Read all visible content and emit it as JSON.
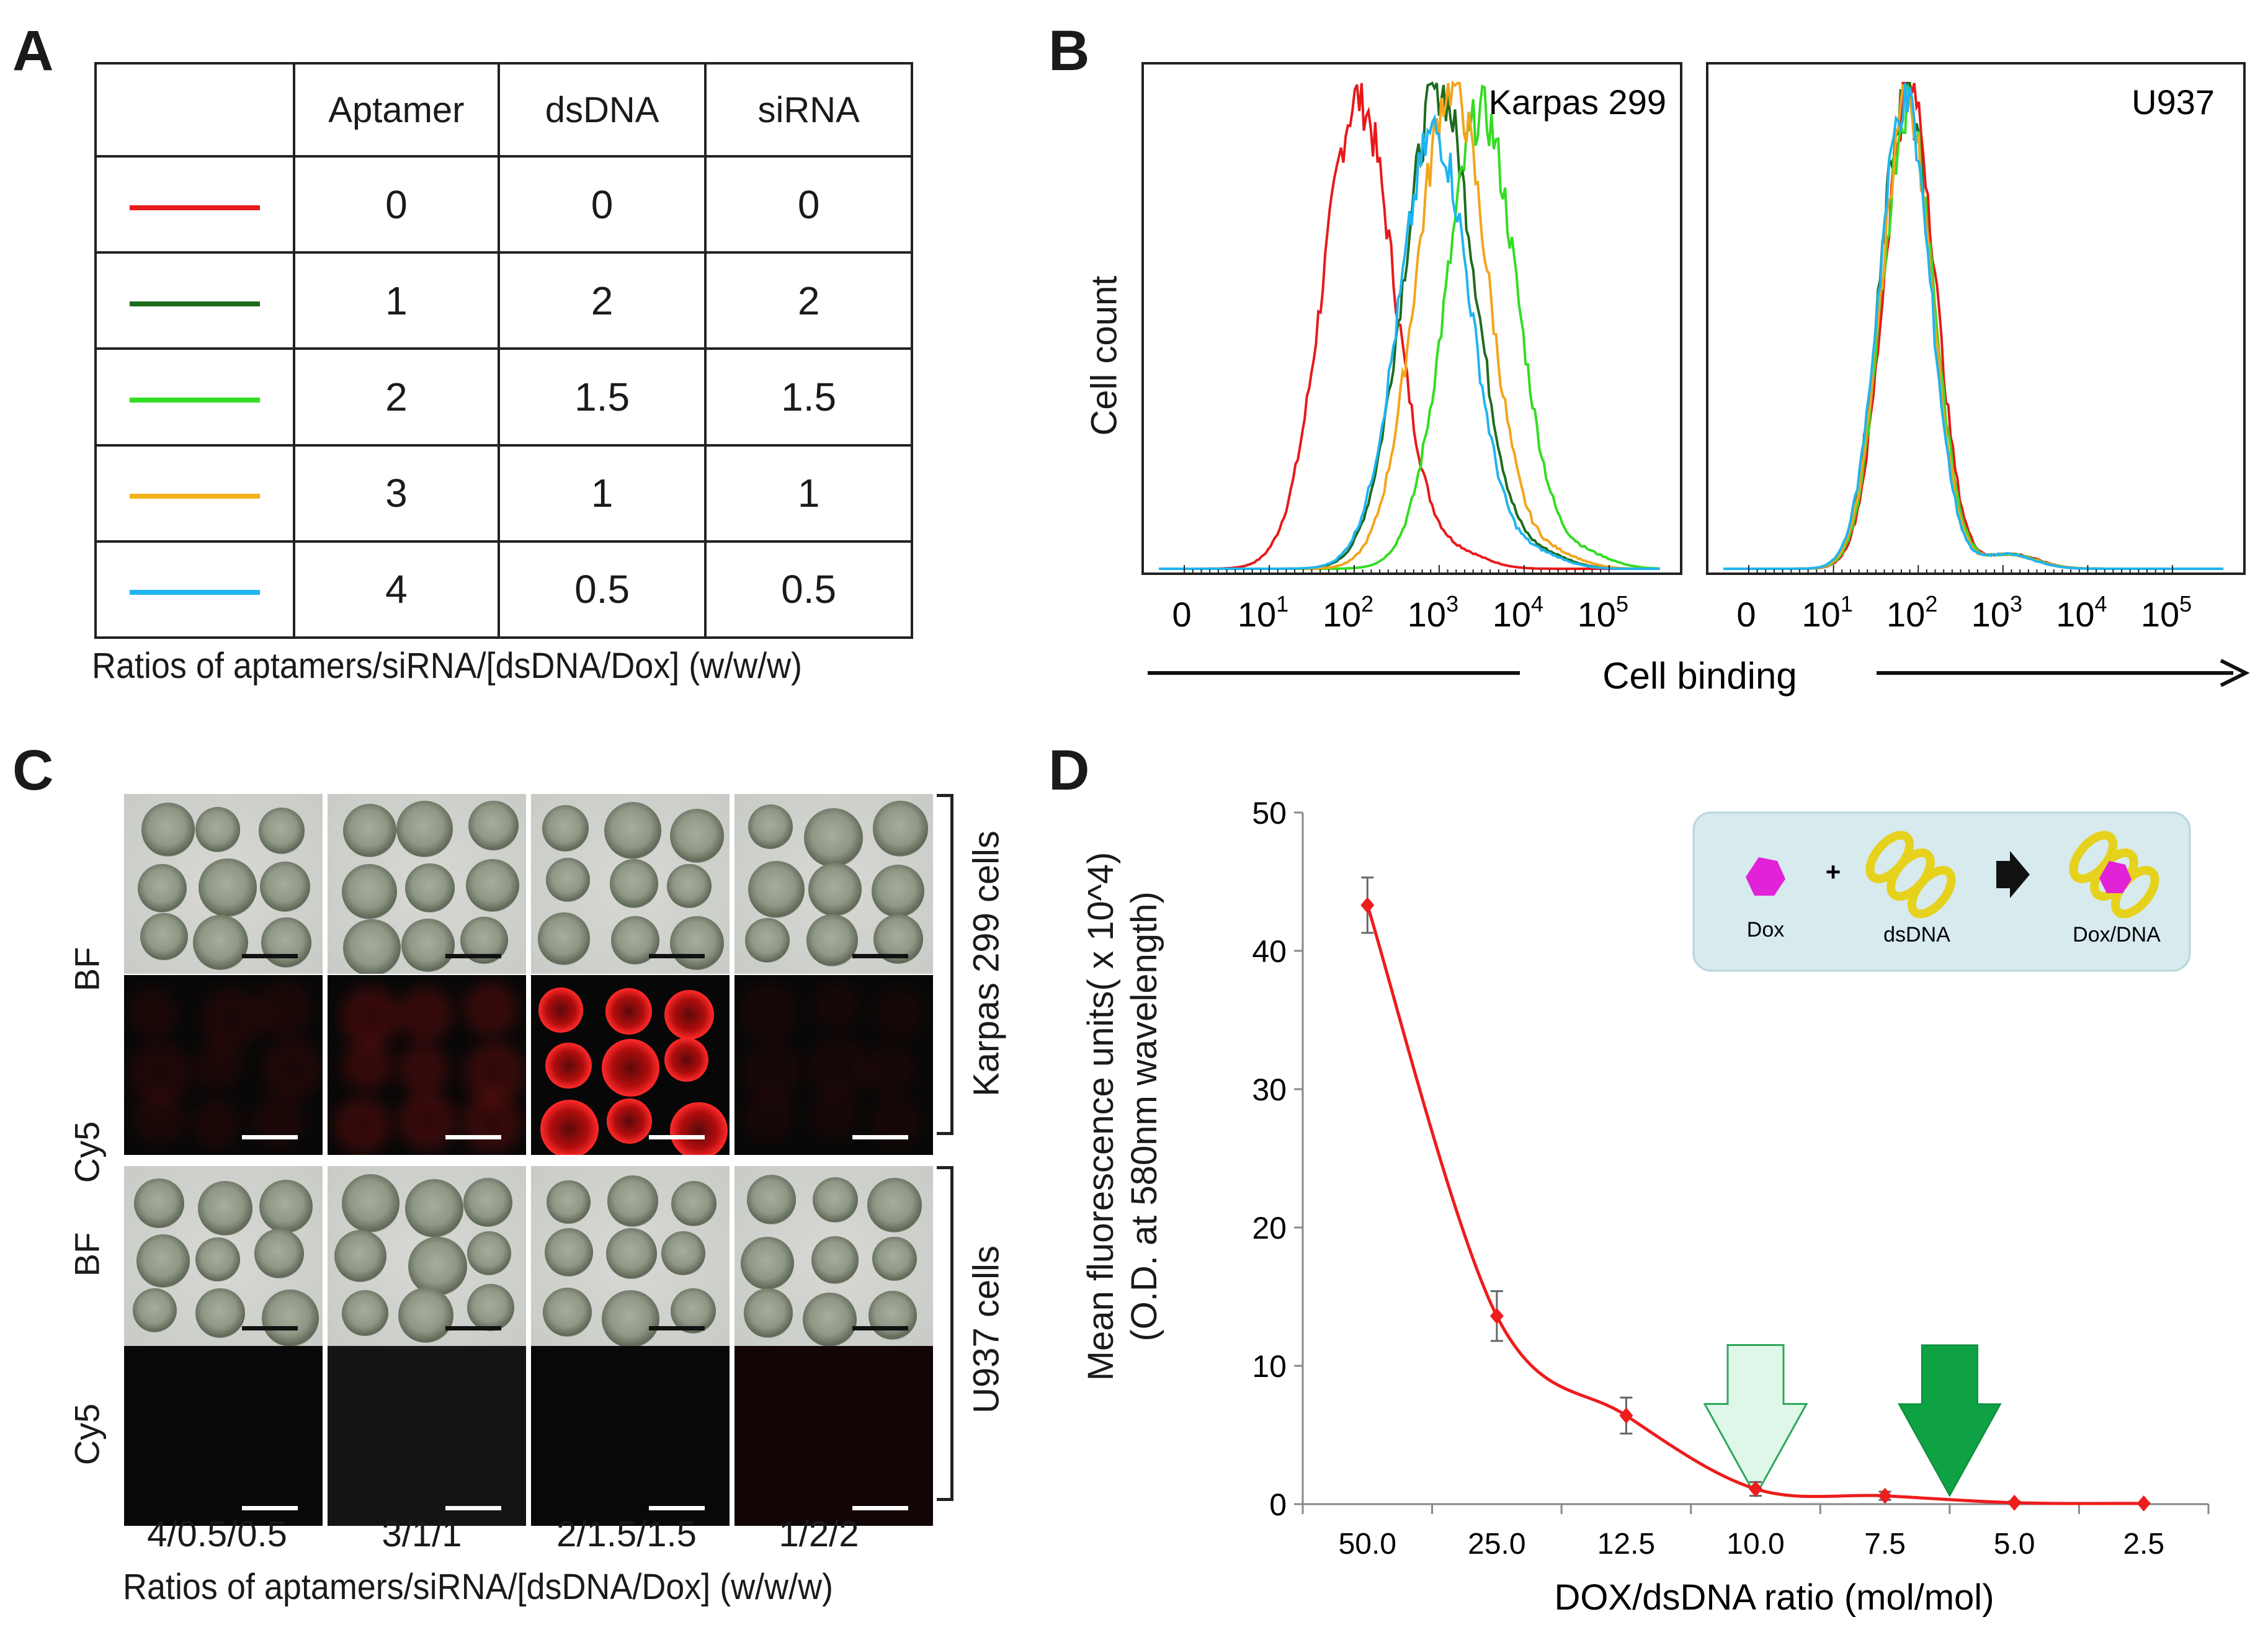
{
  "panel_a": {
    "letter": "A",
    "headers": [
      "Aptamer",
      "dsDNA",
      "siRNA"
    ],
    "rows": [
      {
        "color": "#e8191a",
        "aptamer": "0",
        "dsdna": "0",
        "sirna": "0"
      },
      {
        "color": "#1e6b1e",
        "aptamer": "1",
        "dsdna": "2",
        "sirna": "2"
      },
      {
        "color": "#33dd22",
        "aptamer": "2",
        "dsdna": "1.5",
        "sirna": "1.5"
      },
      {
        "color": "#f2b21c",
        "aptamer": "3",
        "dsdna": "1",
        "sirna": "1"
      },
      {
        "color": "#1fb4f0",
        "aptamer": "4",
        "dsdna": "0.5",
        "sirna": "0.5"
      }
    ],
    "caption": "Ratios of aptamers/siRNA/[dsDNA/Dox]  (w/w/w)"
  },
  "panel_b": {
    "letter": "B",
    "ylabel": "Cell count",
    "xlabel": "Cell binding",
    "tick_base": "10",
    "tick_zero": "0",
    "tick_exponents": [
      "1",
      "2",
      "3",
      "4",
      "5"
    ],
    "plots": [
      {
        "title": "Karpas 299",
        "series": [
          {
            "name": "0/0/0",
            "color": "#e8191a",
            "peak_log": 2.05,
            "height": 0.97
          },
          {
            "name": "1/2/2",
            "color": "#1e6b1e",
            "peak_log": 3.0,
            "height": 0.99
          },
          {
            "name": "2/1.5/1.5",
            "color": "#33dd22",
            "peak_log": 3.5,
            "height": 0.94
          },
          {
            "name": "3/1/1",
            "color": "#f2a51c",
            "peak_log": 3.15,
            "height": 1.0
          },
          {
            "name": "4/0.5/0.5",
            "color": "#1fb4f0",
            "peak_log": 2.95,
            "height": 0.9
          }
        ]
      },
      {
        "title": "U937",
        "series": [
          {
            "name": "0/0/0",
            "color": "#e8191a",
            "peak_log": 1.9,
            "height": 1.0
          },
          {
            "name": "1/2/2",
            "color": "#1e6b1e",
            "peak_log": 1.85,
            "height": 0.98
          },
          {
            "name": "2/1.5/1.5",
            "color": "#33dd22",
            "peak_log": 1.88,
            "height": 0.96
          },
          {
            "name": "3/1/1",
            "color": "#f2a51c",
            "peak_log": 1.86,
            "height": 0.95
          },
          {
            "name": "4/0.5/0.5",
            "color": "#1fb4f0",
            "peak_log": 1.84,
            "height": 0.97
          }
        ]
      }
    ]
  },
  "panel_c": {
    "letter": "C",
    "row_labels": [
      "BF",
      "Cy5",
      "BF",
      "Cy5"
    ],
    "group_labels": [
      "Karpas 299 cells",
      "U937 cells"
    ],
    "column_labels": [
      "4/0.5/0.5",
      "3/1/1",
      "2/1.5/1.5",
      "1/2/2"
    ],
    "caption": "Ratios of aptamers/siRNA/[dsDNA/Dox]  (w/w/w)",
    "cy5_intensity": [
      0.15,
      0.3,
      1.0,
      0.1
    ]
  },
  "panel_d": {
    "letter": "D",
    "inset": {
      "dox": "Dox",
      "plus": "+",
      "dsdna": "dsDNA",
      "complex": "Dox/DNA"
    },
    "chart_data": {
      "type": "line",
      "title": "",
      "xlabel": "DOX/dsDNA ratio (mol/mol)",
      "ylabel_line1": "Mean fluorescence units( x 10^4)",
      "ylabel_line2": "(O.D. at 580nm wavelength)",
      "categories": [
        "50.0",
        "25.0",
        "12.5",
        "10.0",
        "7.5",
        "5.0",
        "2.5"
      ],
      "values": [
        43.3,
        13.6,
        6.4,
        1.1,
        0.6,
        0.1,
        0.05
      ],
      "errors": [
        2.0,
        1.8,
        1.3,
        0.5,
        0.3,
        0.1,
        0.05
      ],
      "ylim": [
        0,
        50
      ],
      "yticks": [
        "0",
        "10",
        "20",
        "30",
        "40",
        "50"
      ],
      "line_color": "#ee1c1c",
      "arrows": [
        {
          "position_category": 3,
          "style": "light-green-outline"
        },
        {
          "position_category": 4.5,
          "style": "dark-green-solid"
        }
      ]
    }
  }
}
